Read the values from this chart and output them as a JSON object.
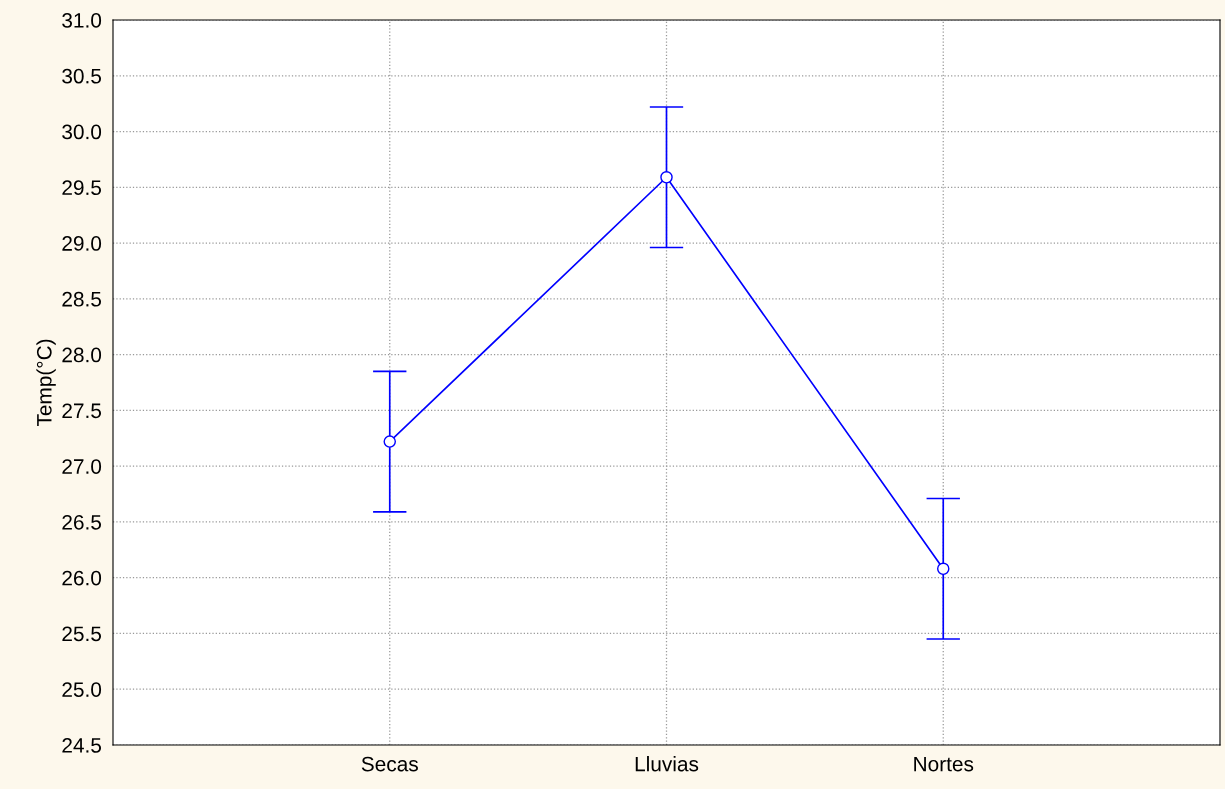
{
  "chart_data": {
    "type": "line",
    "ylabel": "Temp(°C)",
    "categories": [
      "Secas",
      "Lluvias",
      "Nortes"
    ],
    "series": [
      {
        "color": "#0000ff",
        "values": [
          27.22,
          29.59,
          26.08
        ],
        "errors": [
          0.63,
          0.63,
          0.63
        ]
      }
    ],
    "ylim": [
      24.5,
      31.0
    ],
    "yticks": [
      24.5,
      {
        "value": 25,
        "label": "25.0"
      },
      25.5,
      {
        "value": 26,
        "label": "26.0"
      },
      26.5,
      {
        "value": 27,
        "label": "27.0"
      },
      27.5,
      {
        "value": 28,
        "label": "28.0"
      },
      28.5,
      {
        "value": 29,
        "label": "29.0"
      },
      29.5,
      {
        "value": 30,
        "label": "30.0"
      },
      30.5,
      {
        "value": 31,
        "label": "31.0"
      }
    ],
    "grid": true,
    "marker": "circle",
    "line_style": "solid"
  }
}
